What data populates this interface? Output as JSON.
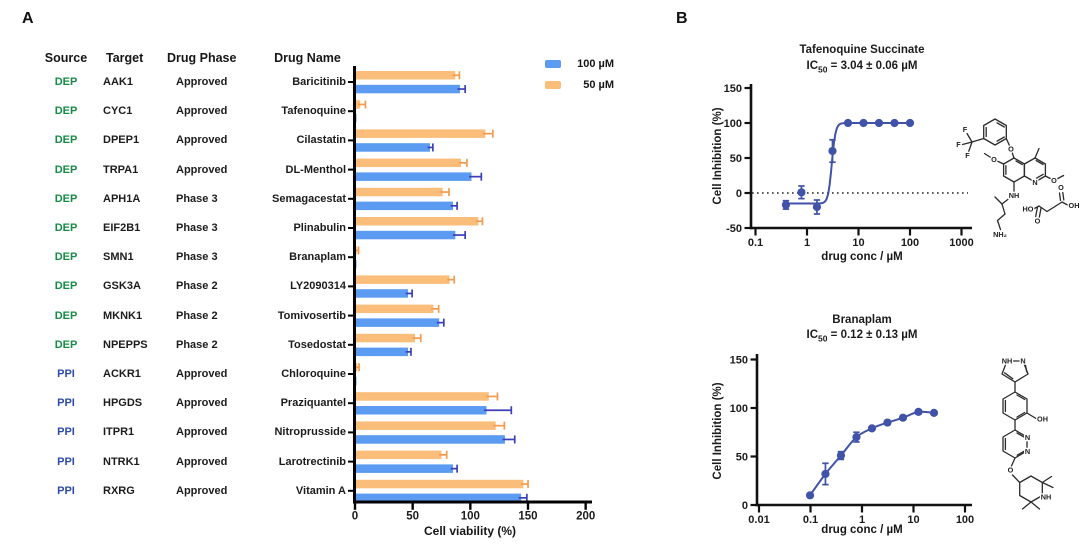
{
  "figure": {
    "panel_a_label": "A",
    "panel_b_label": "B"
  },
  "colors": {
    "bar_blue": "#5B9BF2",
    "bar_orange": "#FBBD7A",
    "err_blue": "#3B3FB8",
    "err_orange": "#F59B4B",
    "dep_green": "#168C47",
    "ppi_blue": "#2B4BA8",
    "curve_blue": "#4053A8",
    "axis_black": "#111111"
  },
  "panel_a": {
    "table": {
      "headers": [
        "Source",
        "Target",
        "Drug Phase",
        "Drug Name"
      ],
      "rows": [
        {
          "source": "DEP",
          "target": "AAK1",
          "phase": "Approved",
          "drug": "Baricitinib"
        },
        {
          "source": "DEP",
          "target": "CYC1",
          "phase": "Approved",
          "drug": "Tafenoquine"
        },
        {
          "source": "DEP",
          "target": "DPEP1",
          "phase": "Approved",
          "drug": "Cilastatin"
        },
        {
          "source": "DEP",
          "target": "TRPA1",
          "phase": "Approved",
          "drug": "DL-Menthol"
        },
        {
          "source": "DEP",
          "target": "APH1A",
          "phase": "Phase 3",
          "drug": "Semagacestat"
        },
        {
          "source": "DEP",
          "target": "EIF2B1",
          "phase": "Phase 3",
          "drug": "Plinabulin"
        },
        {
          "source": "DEP",
          "target": "SMN1",
          "phase": "Phase 3",
          "drug": "Branaplam"
        },
        {
          "source": "DEP",
          "target": "GSK3A",
          "phase": "Phase 2",
          "drug": "LY2090314"
        },
        {
          "source": "DEP",
          "target": "MKNK1",
          "phase": "Phase 2",
          "drug": "Tomivosertib"
        },
        {
          "source": "DEP",
          "target": "NPEPPS",
          "phase": "Phase 2",
          "drug": "Tosedostat"
        },
        {
          "source": "PPI",
          "target": "ACKR1",
          "phase": "Approved",
          "drug": "Chloroquine"
        },
        {
          "source": "PPI",
          "target": "HPGDS",
          "phase": "Approved",
          "drug": "Praziquantel"
        },
        {
          "source": "PPI",
          "target": "ITPR1",
          "phase": "Approved",
          "drug": "Nitroprusside"
        },
        {
          "source": "PPI",
          "target": "NTRK1",
          "phase": "Approved",
          "drug": "Larotrectinib"
        },
        {
          "source": "PPI",
          "target": "RXRG",
          "phase": "Approved",
          "drug": "Vitamin A"
        }
      ]
    }
  },
  "chart_data": [
    {
      "type": "bar",
      "orientation": "horizontal",
      "categories": [
        "Baricitinib",
        "Tafenoquine",
        "Cilastatin",
        "DL-Menthol",
        "Semagacestat",
        "Plinabulin",
        "Branaplam",
        "LY2090314",
        "Tomivosertib",
        "Tosedostat",
        "Chloroquine",
        "Praziquantel",
        "Nitroprusside",
        "Larotrectinib",
        "Vitamin A"
      ],
      "series": [
        {
          "name": "100 µM",
          "color": "#5B9BF2",
          "error_color": "#3B3FB8",
          "values": [
            91,
            1,
            65,
            101,
            85,
            87,
            1,
            46,
            73,
            46,
            0.5,
            114,
            130,
            85,
            144
          ],
          "errors": [
            4,
            0.5,
            2,
            8,
            3,
            8,
            0.5,
            3,
            3.5,
            2,
            0.5,
            21,
            8,
            3,
            4.5
          ]
        },
        {
          "name": "50 µM",
          "color": "#FBBD7A",
          "error_color": "#F59B4B",
          "values": [
            87,
            4.5,
            113,
            92,
            76,
            107,
            1.5,
            82,
            68,
            52,
            2,
            116,
            122,
            75,
            146
          ],
          "errors": [
            3,
            4,
            6,
            4.5,
            5,
            3,
            1,
            3.5,
            4,
            4.5,
            1,
            7,
            7,
            4,
            3.5
          ]
        }
      ],
      "xlabel": "Cell viability (%)",
      "xlim": [
        0,
        200
      ],
      "xticks": [
        0,
        50,
        100,
        150,
        200
      ],
      "legend_position": "top-right",
      "grid": false
    },
    {
      "type": "scatter",
      "xscale": "log",
      "title": "Tafenoquine Succinate",
      "ic50": "3.04 ± 0.06 µM",
      "x": [
        0.39,
        0.78,
        1.56,
        3.125,
        6.25,
        12.5,
        25,
        50,
        100
      ],
      "y": [
        -17,
        1,
        -20,
        60,
        100,
        100,
        100,
        100,
        100
      ],
      "yerr": [
        6,
        9,
        10,
        16,
        0,
        0,
        0,
        0,
        0
      ],
      "xlabel": "drug conc / µM",
      "ylabel": "Cell Inhibition (%)",
      "xlim": [
        0.1,
        1000
      ],
      "ylim": [
        -50,
        150
      ],
      "yticks": [
        -50,
        0,
        50,
        100,
        150
      ],
      "xticks": [
        "0.1",
        "1",
        "10",
        "100",
        "1000"
      ],
      "zero_line": true,
      "curve": {
        "type": "4pl",
        "bottom": -15,
        "top": 100,
        "ic50": 3.04,
        "hill": 12
      }
    },
    {
      "type": "scatter",
      "xscale": "log",
      "title": "Branaplam",
      "ic50": "0.12 ± 0.13 µM",
      "x": [
        0.098,
        0.195,
        0.39,
        0.78,
        1.56,
        3.125,
        6.25,
        12.5,
        25
      ],
      "y": [
        10,
        32,
        51,
        70,
        79,
        85,
        90,
        96,
        95
      ],
      "yerr": [
        1.5,
        11,
        4,
        5,
        2,
        0,
        0,
        2,
        0
      ],
      "xlabel": "drug conc / µM",
      "ylabel": "Cell Inhibition (%)",
      "xlim": [
        0.01,
        100
      ],
      "ylim": [
        0,
        150
      ],
      "yticks": [
        0,
        50,
        100,
        150
      ],
      "xticks": [
        "0.01",
        "0.1",
        "1",
        "10",
        "100"
      ],
      "zero_line": false,
      "curve": {
        "type": "spline"
      }
    }
  ],
  "panel_b": {
    "plots": [
      {
        "ic50_prefix": "IC",
        "ic50_sub": "50",
        "ic50_rest": " = 3.04 ± 0.06 µM",
        "structure": {
          "name": "Tafenoquine Succinate structure",
          "atoms": [
            "F",
            "F",
            "F",
            "O",
            "O",
            "O",
            "N",
            "NH",
            "NH₂",
            "HO",
            "O",
            "O",
            "OH"
          ]
        }
      },
      {
        "ic50_prefix": "IC",
        "ic50_sub": "50",
        "ic50_rest": " = 0.12 ± 0.13 µM",
        "structure": {
          "name": "Branaplam structure",
          "atoms": [
            "NH",
            "N",
            "OH",
            "N",
            "N",
            "O",
            "NH"
          ]
        }
      }
    ]
  }
}
